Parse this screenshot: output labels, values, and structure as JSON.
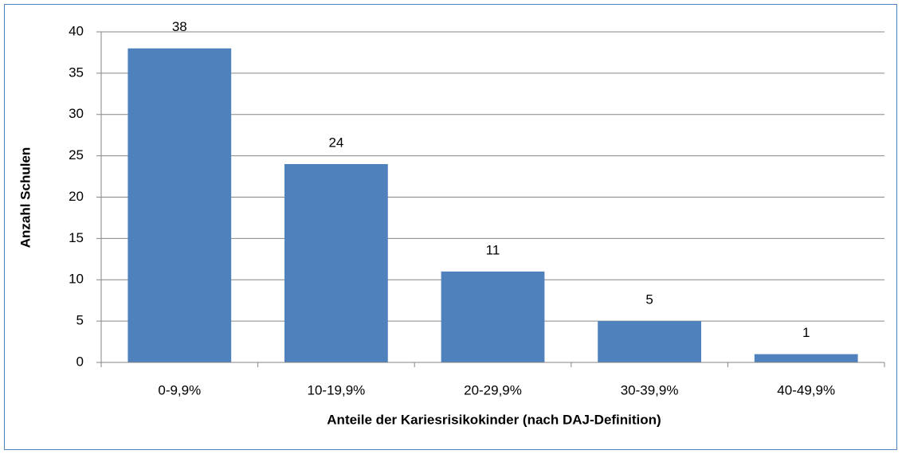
{
  "chart_data": {
    "type": "bar",
    "x_label": "Anteile der Kariesrisikokinder (nach DAJ-Definition)",
    "y_label": "Anzahl Schulen",
    "categories": [
      "0-9,9%",
      "10-19,9%",
      "20-29,9%",
      "30-39,9%",
      "40-49,9%"
    ],
    "values": [
      38,
      24,
      11,
      5,
      1
    ],
    "color": "#4f81bd",
    "ylim": [
      0,
      40
    ],
    "yticks": [
      0,
      5,
      10,
      15,
      20,
      25,
      30,
      35,
      40
    ],
    "grid": true,
    "data_labels": true
  }
}
